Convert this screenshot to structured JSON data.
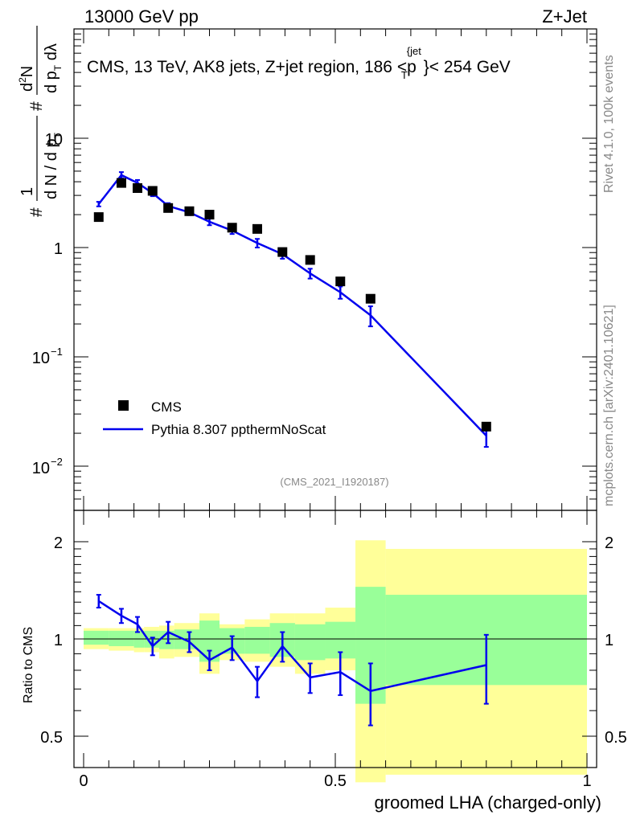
{
  "header": {
    "left": "13000 GeV pp",
    "right": "Z+Jet",
    "title": "CMS, 13 TeV, AK8 jets, Z+jet region, 186 <p",
    "title_sup": "{jet",
    "title_sub": "T",
    "title_tail": "}< 254 GeV",
    "side_rivet": "Rivet 4.1.0,  100k events",
    "side_mcplots": "mcplots.cern.ch [arXiv:2401.10621]",
    "watermark": "(CMS_2021_I1920187)"
  },
  "axes": {
    "top_ylabel": "# 1/(dN / dp_T) # d²N/(dp_T dλ)",
    "top_yticks": [
      "10",
      "1",
      "10",
      "10"
    ],
    "top_ytick_exps": [
      "",
      "",
      "−1",
      "−2"
    ],
    "bottom_ylabel": "Ratio to CMS",
    "bottom_yticks": [
      "2",
      "1",
      "0.5"
    ],
    "xticks": [
      "0",
      "0.5",
      "1"
    ],
    "xlabel": "groomed LHA (charged-only)"
  },
  "legend": {
    "data_label": "CMS",
    "mc_label": "Pythia 8.307 ppthermNoScat"
  },
  "colors": {
    "data": "#000000",
    "mc": "#0000ee",
    "band_inner": "#99ff99",
    "band_outer": "#ffff99"
  },
  "chart_data": {
    "type": "line",
    "x_range": [
      0,
      1
    ],
    "bins": [
      [
        0.0,
        0.05
      ],
      [
        0.05,
        0.1
      ],
      [
        0.1,
        0.12
      ],
      [
        0.12,
        0.15
      ],
      [
        0.15,
        0.18
      ],
      [
        0.18,
        0.23
      ],
      [
        0.23,
        0.27
      ],
      [
        0.27,
        0.32
      ],
      [
        0.32,
        0.37
      ],
      [
        0.37,
        0.42
      ],
      [
        0.42,
        0.48
      ],
      [
        0.48,
        0.54
      ],
      [
        0.54,
        0.6
      ],
      [
        0.6,
        1.0
      ]
    ],
    "x": [
      0.03,
      0.075,
      0.107,
      0.137,
      0.168,
      0.21,
      0.25,
      0.295,
      0.345,
      0.395,
      0.45,
      0.51,
      0.57,
      0.8
    ],
    "top": {
      "scale": "log",
      "ylim": [
        0.004,
        100
      ],
      "series": [
        {
          "name": "CMS",
          "values": [
            1.9,
            3.9,
            3.5,
            3.3,
            2.3,
            2.15,
            2.0,
            1.52,
            1.48,
            0.91,
            0.77,
            0.49,
            0.34,
            0.023
          ]
        },
        {
          "name": "Pythia 8.307 ppthermNoScat",
          "values": [
            2.5,
            4.6,
            3.9,
            3.15,
            2.4,
            2.1,
            1.72,
            1.43,
            1.1,
            0.87,
            0.58,
            0.39,
            0.24,
            0.019
          ],
          "errors": [
            0.12,
            0.3,
            0.25,
            0.2,
            0.15,
            0.12,
            0.12,
            0.1,
            0.1,
            0.08,
            0.06,
            0.05,
            0.05,
            0.004
          ]
        }
      ]
    },
    "ratio": {
      "ylabel": "Ratio to CMS",
      "scale": "log",
      "ylim": [
        0.35,
        2.35
      ],
      "mc_ratio": [
        1.31,
        1.18,
        1.11,
        0.95,
        1.05,
        0.98,
        0.86,
        0.94,
        0.74,
        0.95,
        0.76,
        0.79,
        0.69,
        0.83
      ],
      "mc_ratio_err": [
        0.06,
        0.06,
        0.06,
        0.06,
        0.08,
        0.07,
        0.06,
        0.08,
        0.08,
        0.1,
        0.08,
        0.12,
        0.15,
        0.2
      ],
      "band_inner": [
        [
          0.96,
          1.06
        ],
        [
          0.95,
          1.06
        ],
        [
          0.94,
          1.06
        ],
        [
          0.94,
          1.06
        ],
        [
          0.93,
          1.06
        ],
        [
          0.93,
          1.07
        ],
        [
          0.85,
          1.14
        ],
        [
          0.9,
          1.08
        ],
        [
          0.9,
          1.09
        ],
        [
          0.88,
          1.12
        ],
        [
          0.86,
          1.11
        ],
        [
          0.87,
          1.13
        ],
        [
          0.63,
          1.45
        ],
        [
          0.72,
          1.37
        ]
      ],
      "band_outer": [
        [
          0.93,
          1.08
        ],
        [
          0.92,
          1.08
        ],
        [
          0.91,
          1.08
        ],
        [
          0.91,
          1.09
        ],
        [
          0.87,
          1.1
        ],
        [
          0.88,
          1.12
        ],
        [
          0.78,
          1.2
        ],
        [
          0.86,
          1.11
        ],
        [
          0.85,
          1.15
        ],
        [
          0.82,
          1.2
        ],
        [
          0.78,
          1.2
        ],
        [
          0.8,
          1.25
        ],
        [
          0.36,
          2.02
        ],
        [
          0.38,
          1.9
        ]
      ]
    }
  }
}
